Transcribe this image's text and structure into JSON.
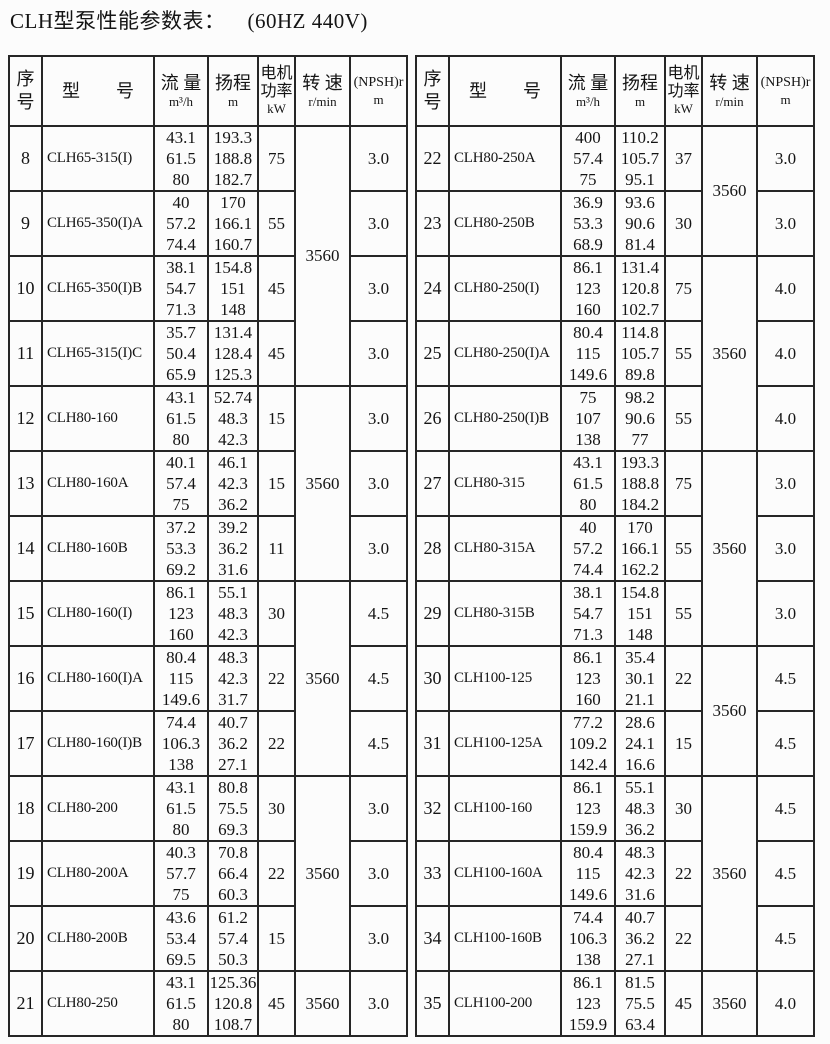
{
  "title": "CLH型泵性能参数表：",
  "title_suffix": "(60HZ 440V)",
  "columns": {
    "no": "序号",
    "model": "型　　号",
    "flow": "流 量",
    "flow_unit": "m³/h",
    "head": "扬程",
    "head_unit": "m",
    "power": "电机功率",
    "power_unit": "kW",
    "speed": "转 速",
    "speed_unit": "r/min",
    "npsh": "(NPSH)r",
    "npsh_unit": "m"
  },
  "colors": {
    "border": "#262626",
    "background": "#fcfcfc",
    "text": "#141414"
  },
  "tables": [
    {
      "rows": [
        {
          "no": "8",
          "model": "CLH65-315(I)",
          "flow": [
            "43.1",
            "61.5",
            "80"
          ],
          "head": [
            "193.3",
            "188.8",
            "182.7"
          ],
          "power": "75",
          "speed": "3560",
          "speed_span": 4,
          "npsh": "3.0"
        },
        {
          "no": "9",
          "model": "CLH65-350(I)A",
          "flow": [
            "40",
            "57.2",
            "74.4"
          ],
          "head": [
            "170",
            "166.1",
            "160.7"
          ],
          "power": "55",
          "npsh": "3.0"
        },
        {
          "no": "10",
          "model": "CLH65-350(I)B",
          "flow": [
            "38.1",
            "54.7",
            "71.3"
          ],
          "head": [
            "154.8",
            "151",
            "148"
          ],
          "power": "45",
          "npsh": "3.0"
        },
        {
          "no": "11",
          "model": "CLH65-315(I)C",
          "flow": [
            "35.7",
            "50.4",
            "65.9"
          ],
          "head": [
            "131.4",
            "128.4",
            "125.3"
          ],
          "power": "45",
          "npsh": "3.0"
        },
        {
          "no": "12",
          "model": "CLH80-160",
          "flow": [
            "43.1",
            "61.5",
            "80"
          ],
          "head": [
            "52.74",
            "48.3",
            "42.3"
          ],
          "power": "15",
          "speed": "3560",
          "speed_span": 3,
          "npsh": "3.0"
        },
        {
          "no": "13",
          "model": "CLH80-160A",
          "flow": [
            "40.1",
            "57.4",
            "75"
          ],
          "head": [
            "46.1",
            "42.3",
            "36.2"
          ],
          "power": "15",
          "npsh": "3.0"
        },
        {
          "no": "14",
          "model": "CLH80-160B",
          "flow": [
            "37.2",
            "53.3",
            "69.2"
          ],
          "head": [
            "39.2",
            "36.2",
            "31.6"
          ],
          "power": "11",
          "npsh": "3.0"
        },
        {
          "no": "15",
          "model": "CLH80-160(I)",
          "flow": [
            "86.1",
            "123",
            "160"
          ],
          "head": [
            "55.1",
            "48.3",
            "42.3"
          ],
          "power": "30",
          "speed": "3560",
          "speed_span": 3,
          "npsh": "4.5"
        },
        {
          "no": "16",
          "model": "CLH80-160(I)A",
          "flow": [
            "80.4",
            "115",
            "149.6"
          ],
          "head": [
            "48.3",
            "42.3",
            "31.7"
          ],
          "power": "22",
          "npsh": "4.5"
        },
        {
          "no": "17",
          "model": "CLH80-160(I)B",
          "flow": [
            "74.4",
            "106.3",
            "138"
          ],
          "head": [
            "40.7",
            "36.2",
            "27.1"
          ],
          "power": "22",
          "npsh": "4.5"
        },
        {
          "no": "18",
          "model": "CLH80-200",
          "flow": [
            "43.1",
            "61.5",
            "80"
          ],
          "head": [
            "80.8",
            "75.5",
            "69.3"
          ],
          "power": "30",
          "speed": "3560",
          "speed_span": 3,
          "npsh": "3.0"
        },
        {
          "no": "19",
          "model": "CLH80-200A",
          "flow": [
            "40.3",
            "57.7",
            "75"
          ],
          "head": [
            "70.8",
            "66.4",
            "60.3"
          ],
          "power": "22",
          "npsh": "3.0"
        },
        {
          "no": "20",
          "model": "CLH80-200B",
          "flow": [
            "43.6",
            "53.4",
            "69.5"
          ],
          "head": [
            "61.2",
            "57.4",
            "50.3"
          ],
          "power": "15",
          "npsh": "3.0"
        },
        {
          "no": "21",
          "model": "CLH80-250",
          "flow": [
            "43.1",
            "61.5",
            "80"
          ],
          "head": [
            "125.36",
            "120.8",
            "108.7"
          ],
          "power": "45",
          "speed": "3560",
          "speed_span": 1,
          "npsh": "3.0"
        }
      ]
    },
    {
      "rows": [
        {
          "no": "22",
          "model": "CLH80-250A",
          "flow": [
            "400",
            "57.4",
            "75"
          ],
          "head": [
            "110.2",
            "105.7",
            "95.1"
          ],
          "power": "37",
          "speed": "3560",
          "speed_span": 2,
          "npsh": "3.0"
        },
        {
          "no": "23",
          "model": "CLH80-250B",
          "flow": [
            "36.9",
            "53.3",
            "68.9"
          ],
          "head": [
            "93.6",
            "90.6",
            "81.4"
          ],
          "power": "30",
          "npsh": "3.0"
        },
        {
          "no": "24",
          "model": "CLH80-250(I)",
          "flow": [
            "86.1",
            "123",
            "160"
          ],
          "head": [
            "131.4",
            "120.8",
            "102.7"
          ],
          "power": "75",
          "speed": "3560",
          "speed_span": 3,
          "npsh": "4.0"
        },
        {
          "no": "25",
          "model": "CLH80-250(I)A",
          "flow": [
            "80.4",
            "115",
            "149.6"
          ],
          "head": [
            "114.8",
            "105.7",
            "89.8"
          ],
          "power": "55",
          "npsh": "4.0"
        },
        {
          "no": "26",
          "model": "CLH80-250(I)B",
          "flow": [
            "75",
            "107",
            "138"
          ],
          "head": [
            "98.2",
            "90.6",
            "77"
          ],
          "power": "55",
          "npsh": "4.0"
        },
        {
          "no": "27",
          "model": "CLH80-315",
          "flow": [
            "43.1",
            "61.5",
            "80"
          ],
          "head": [
            "193.3",
            "188.8",
            "184.2"
          ],
          "power": "75",
          "speed": "3560",
          "speed_span": 3,
          "npsh": "3.0"
        },
        {
          "no": "28",
          "model": "CLH80-315A",
          "flow": [
            "40",
            "57.2",
            "74.4"
          ],
          "head": [
            "170",
            "166.1",
            "162.2"
          ],
          "power": "55",
          "npsh": "3.0"
        },
        {
          "no": "29",
          "model": "CLH80-315B",
          "flow": [
            "38.1",
            "54.7",
            "71.3"
          ],
          "head": [
            "154.8",
            "151",
            "148"
          ],
          "power": "55",
          "npsh": "3.0"
        },
        {
          "no": "30",
          "model": "CLH100-125",
          "flow": [
            "86.1",
            "123",
            "160"
          ],
          "head": [
            "35.4",
            "30.1",
            "21.1"
          ],
          "power": "22",
          "speed": "3560",
          "speed_span": 2,
          "npsh": "4.5"
        },
        {
          "no": "31",
          "model": "CLH100-125A",
          "flow": [
            "77.2",
            "109.2",
            "142.4"
          ],
          "head": [
            "28.6",
            "24.1",
            "16.6"
          ],
          "power": "15",
          "npsh": "4.5"
        },
        {
          "no": "32",
          "model": "CLH100-160",
          "flow": [
            "86.1",
            "123",
            "159.9"
          ],
          "head": [
            "55.1",
            "48.3",
            "36.2"
          ],
          "power": "30",
          "speed": "3560",
          "speed_span": 3,
          "npsh": "4.5"
        },
        {
          "no": "33",
          "model": "CLH100-160A",
          "flow": [
            "80.4",
            "115",
            "149.6"
          ],
          "head": [
            "48.3",
            "42.3",
            "31.6"
          ],
          "power": "22",
          "npsh": "4.5"
        },
        {
          "no": "34",
          "model": "CLH100-160B",
          "flow": [
            "74.4",
            "106.3",
            "138"
          ],
          "head": [
            "40.7",
            "36.2",
            "27.1"
          ],
          "power": "22",
          "npsh": "4.5"
        },
        {
          "no": "35",
          "model": "CLH100-200",
          "flow": [
            "86.1",
            "123",
            "159.9"
          ],
          "head": [
            "81.5",
            "75.5",
            "63.4"
          ],
          "power": "45",
          "speed": "3560",
          "speed_span": 1,
          "npsh": "4.0"
        }
      ]
    }
  ]
}
